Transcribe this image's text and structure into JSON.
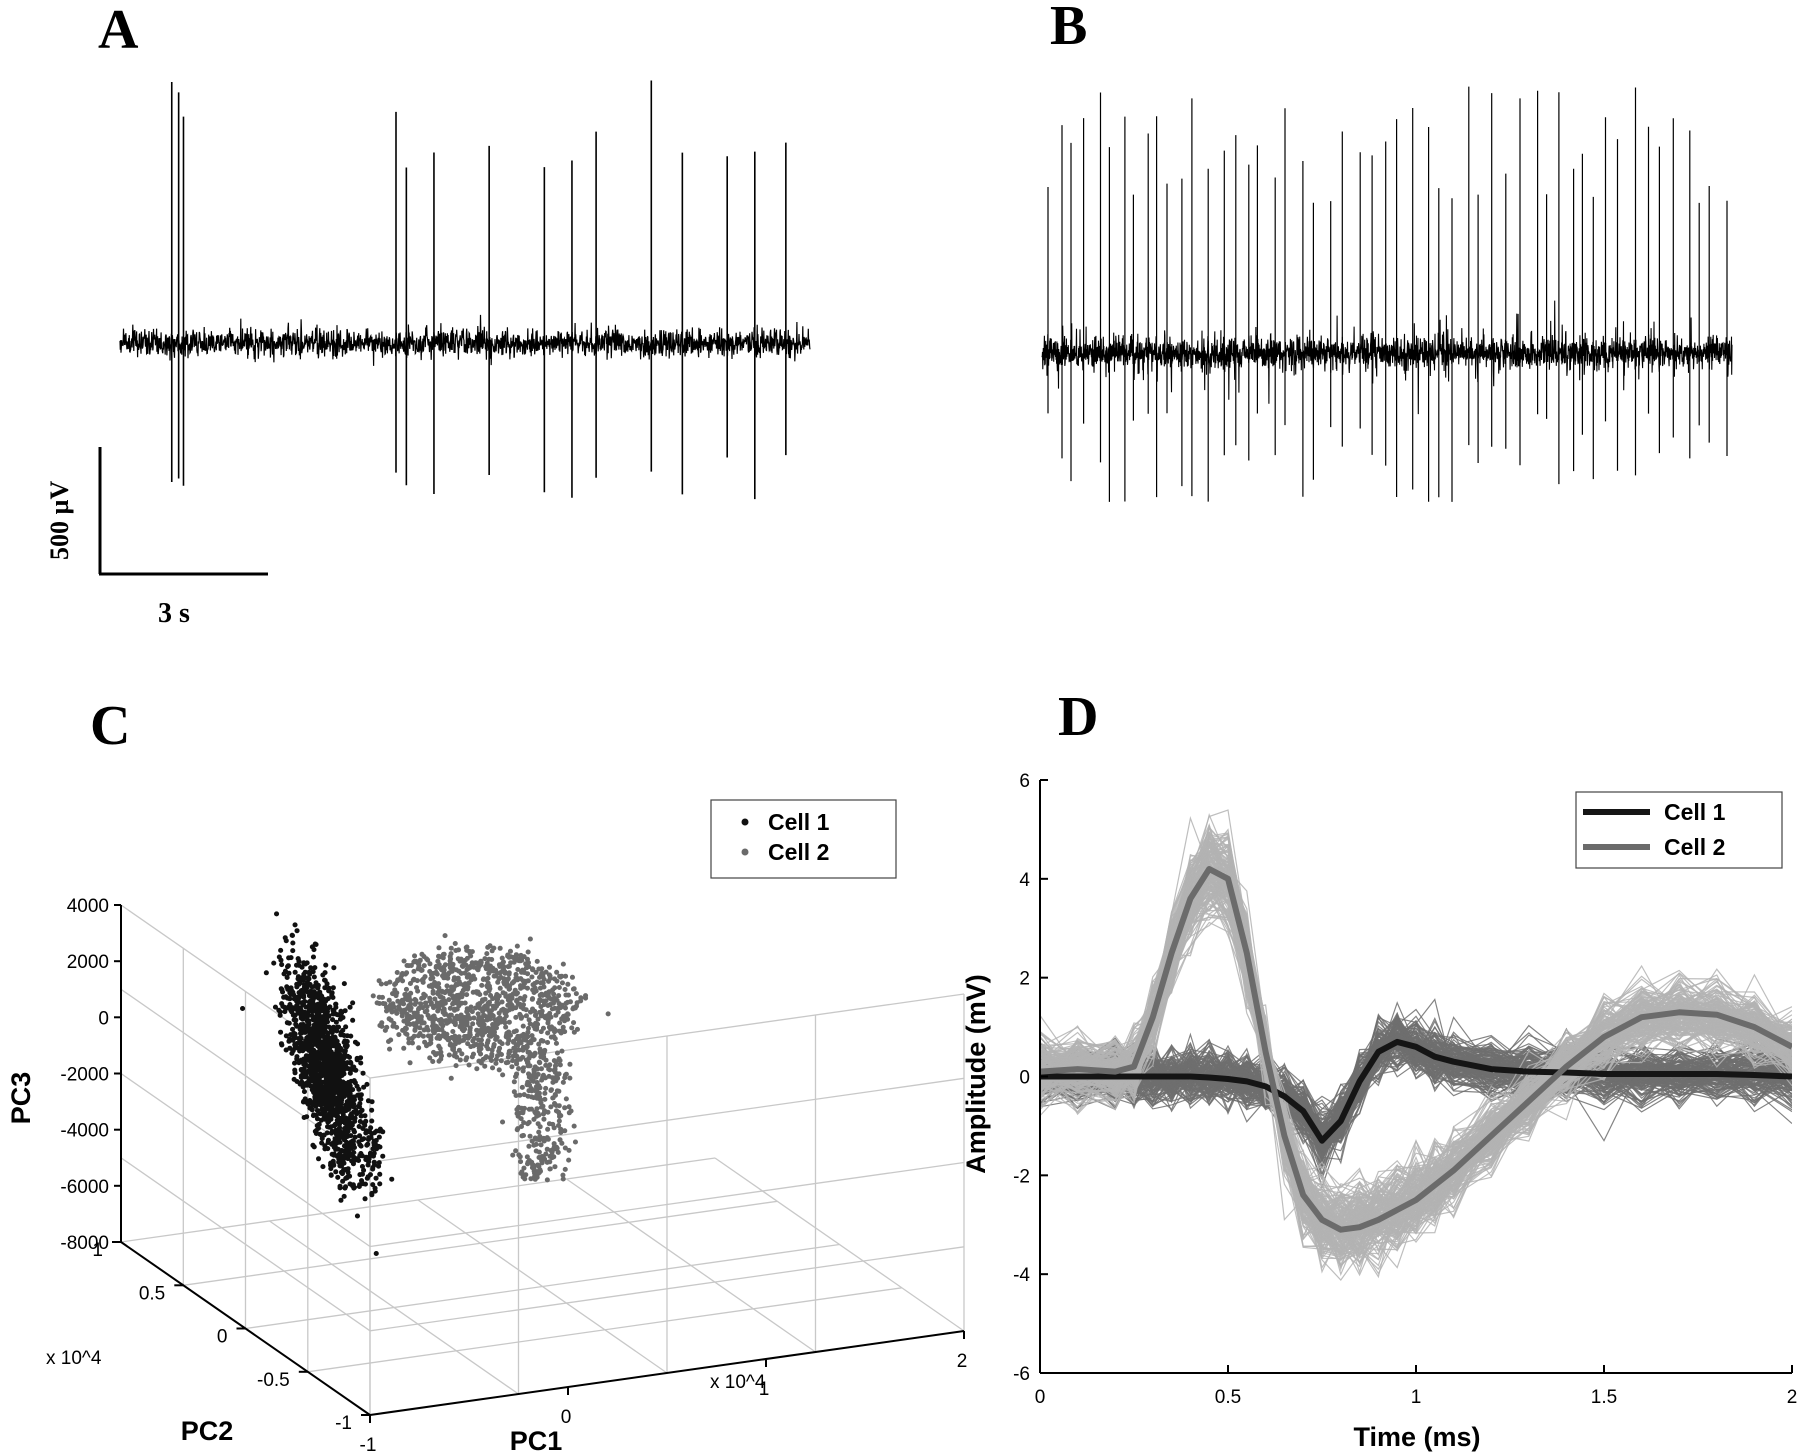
{
  "chart_data": [
    {
      "panel": "A",
      "type": "line",
      "scale_bar": {
        "vertical": "500 µV",
        "horizontal": "3 s"
      },
      "spike_positions": [
        0.075,
        0.085,
        0.092,
        0.4,
        0.415,
        0.455,
        0.535,
        0.615,
        0.655,
        0.69,
        0.77,
        0.815,
        0.88,
        0.92,
        0.965
      ],
      "color": "#000000"
    },
    {
      "panel": "B",
      "type": "line",
      "density": "high",
      "color": "#000000"
    },
    {
      "panel": "C",
      "type": "scatter",
      "xlabel": "PC1",
      "ylabel": "PC2",
      "zlabel": "PC3",
      "x_multiplier": "x 10^4",
      "y_multiplier": "x 10^4",
      "pc1_ticks": [
        "-1",
        "0",
        "1",
        "2"
      ],
      "pc2_ticks": [
        "1",
        "0.5",
        "0",
        "-0.5",
        "-1"
      ],
      "pc3_ticks": [
        "4000",
        "2000",
        "0",
        "-2000",
        "-4000",
        "-6000",
        "-8000"
      ],
      "legend": {
        "position": "top-right",
        "entries": [
          "Cell 1",
          "Cell 2"
        ]
      },
      "series": [
        {
          "name": "Cell 1",
          "color": "#111111"
        },
        {
          "name": "Cell 2",
          "color": "#6a6a6a"
        }
      ]
    },
    {
      "panel": "D",
      "type": "line",
      "xlabel": "Time (ms)",
      "ylabel": "Amplitude (mV)",
      "xlim": [
        0,
        2
      ],
      "ylim": [
        -6,
        6
      ],
      "xticks": [
        "0",
        "0.5",
        "1",
        "1.5",
        "2"
      ],
      "yticks": [
        "6",
        "4",
        "2",
        "0",
        "-2",
        "-4",
        "-6"
      ],
      "legend": {
        "position": "top-right",
        "entries": [
          "Cell 1",
          "Cell 2"
        ]
      },
      "x": [
        0,
        0.1,
        0.2,
        0.25,
        0.3,
        0.35,
        0.4,
        0.45,
        0.5,
        0.55,
        0.6,
        0.65,
        0.7,
        0.75,
        0.8,
        0.85,
        0.9,
        0.95,
        1.0,
        1.05,
        1.1,
        1.2,
        1.3,
        1.4,
        1.5,
        1.6,
        1.7,
        1.8,
        1.9,
        2.0
      ],
      "series": [
        {
          "name": "Cell 1",
          "color": "#151515",
          "envelope_color": "#6e6e6e",
          "values": [
            0,
            0,
            0,
            0,
            0,
            0,
            0,
            -0.02,
            -0.05,
            -0.1,
            -0.2,
            -0.4,
            -0.7,
            -1.3,
            -0.9,
            -0.1,
            0.5,
            0.7,
            0.6,
            0.4,
            0.3,
            0.15,
            0.1,
            0.08,
            0.05,
            0.05,
            0.05,
            0.05,
            0.03,
            0
          ]
        },
        {
          "name": "Cell 2",
          "color": "#6b6b6b",
          "envelope_color": "#b3b3b3",
          "values": [
            0.1,
            0.15,
            0.1,
            0.2,
            1.2,
            2.5,
            3.6,
            4.2,
            4.0,
            2.5,
            0.5,
            -1.2,
            -2.4,
            -2.9,
            -3.1,
            -3.05,
            -2.9,
            -2.7,
            -2.5,
            -2.2,
            -1.9,
            -1.2,
            -0.5,
            0.2,
            0.8,
            1.2,
            1.3,
            1.25,
            1.0,
            0.6
          ]
        }
      ]
    }
  ],
  "panels": {
    "a": "A",
    "b": "B",
    "c": "C",
    "d": "D"
  }
}
